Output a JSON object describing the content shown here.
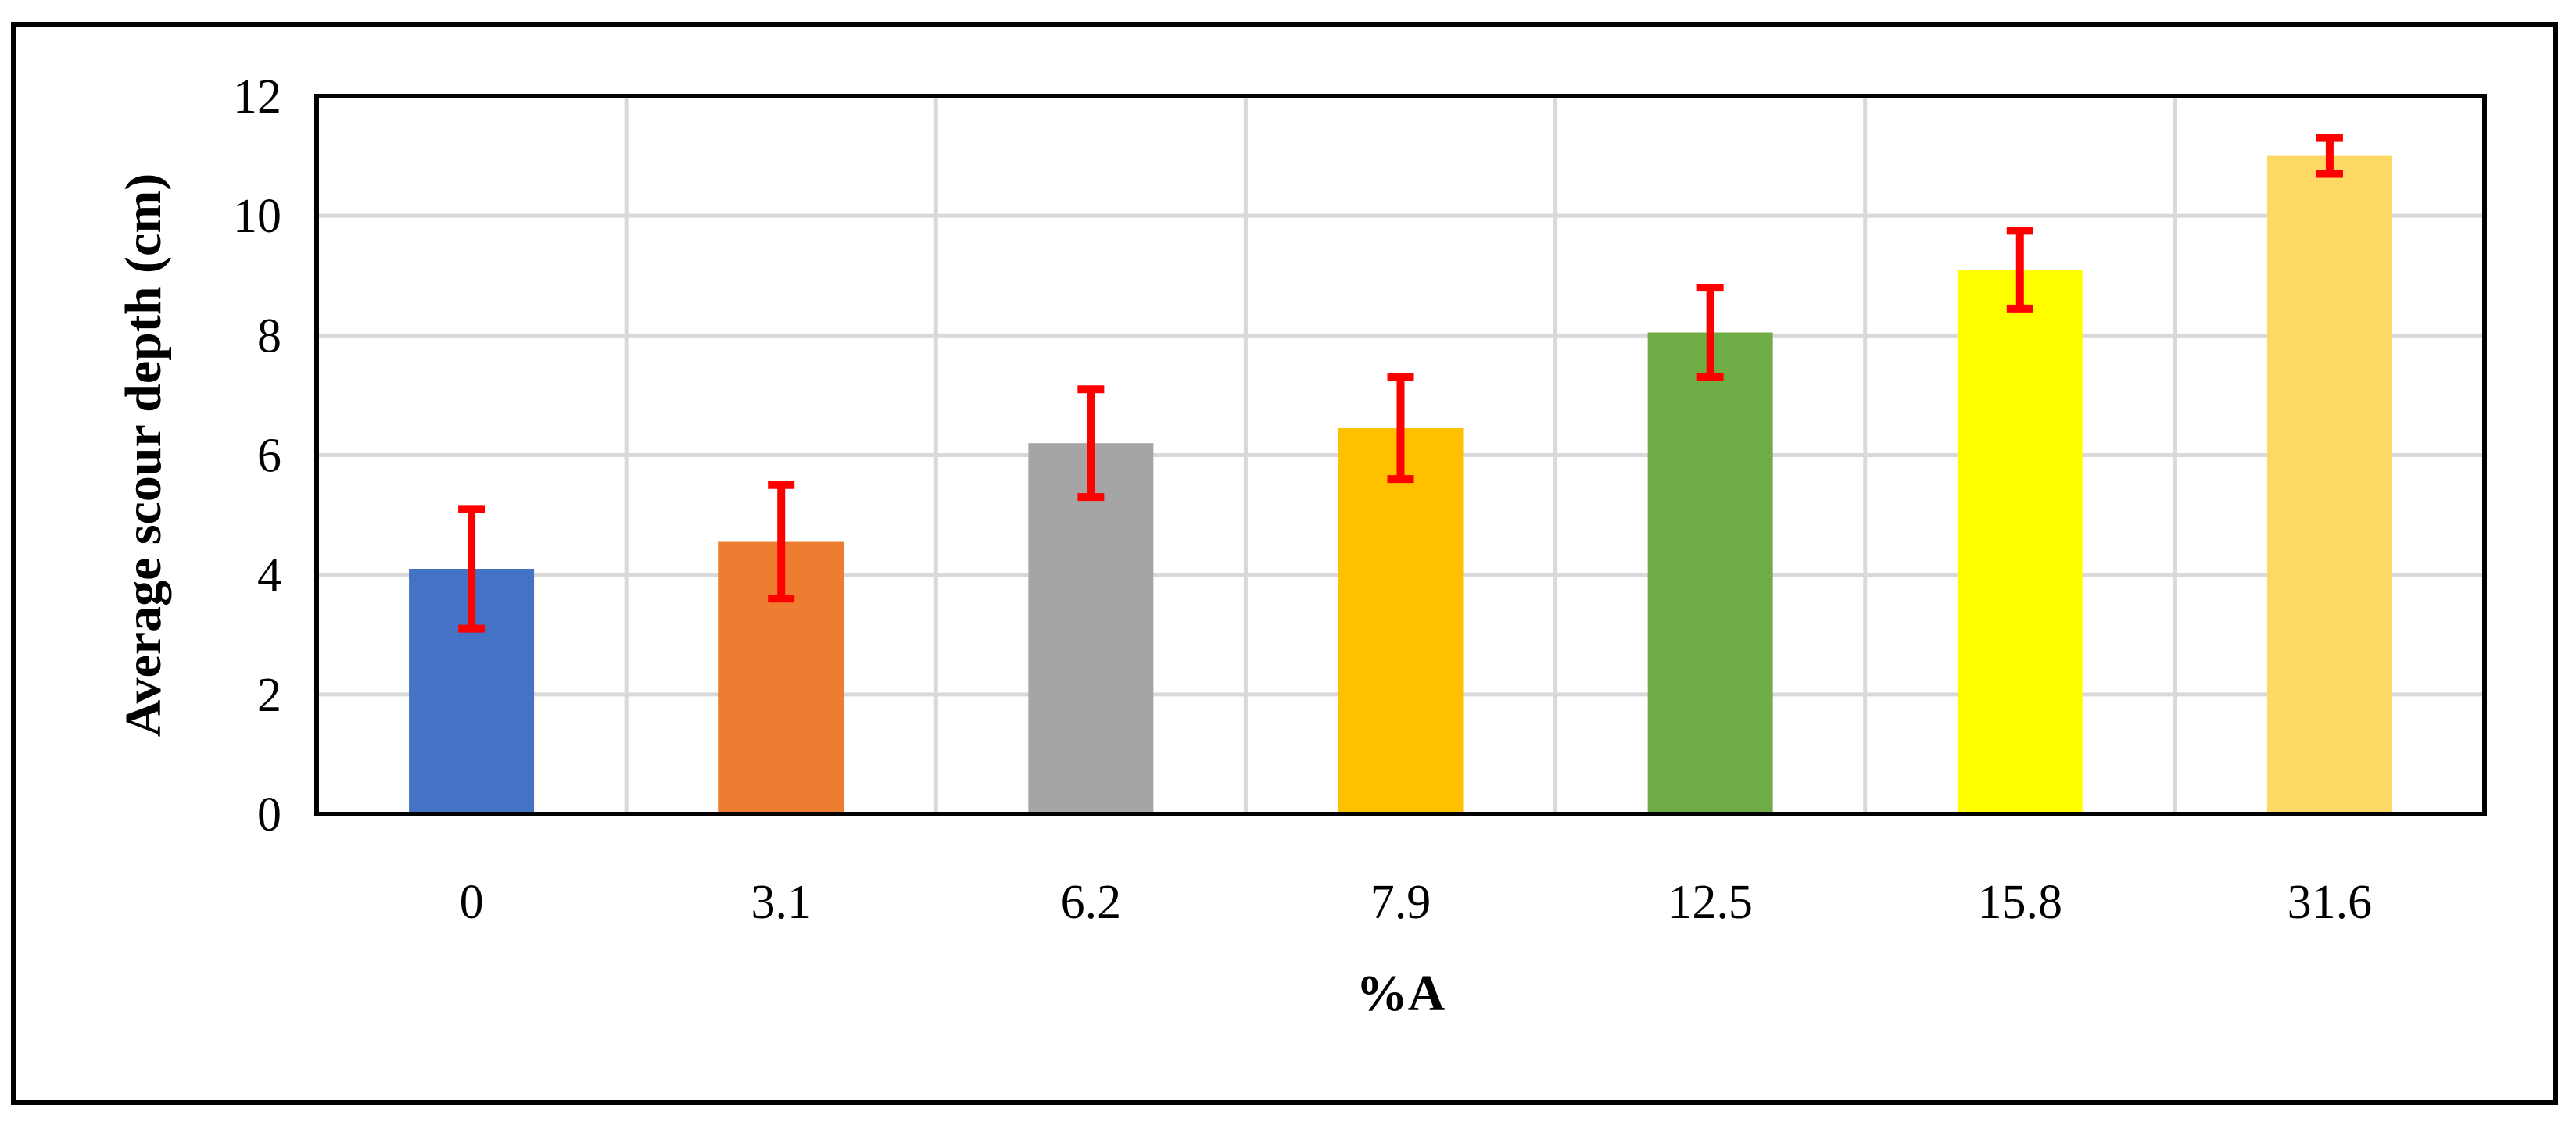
{
  "chart_data": {
    "type": "bar",
    "title": "",
    "xlabel": "%A",
    "ylabel": "Average scour depth (cm)",
    "ylim": [
      0,
      12
    ],
    "yticks": [
      0,
      2,
      4,
      6,
      8,
      10,
      12
    ],
    "grid": true,
    "legend": "none",
    "categories": [
      "0",
      "3.1",
      "6.2",
      "7.9",
      "12.5",
      "15.8",
      "31.6"
    ],
    "values": [
      4.1,
      4.55,
      6.2,
      6.45,
      8.05,
      9.1,
      11.0
    ],
    "error_bars": [
      1.0,
      0.95,
      0.9,
      0.85,
      0.75,
      0.65,
      0.3
    ],
    "bar_colors": [
      "#4472C4",
      "#ED7D31",
      "#A5A5A5",
      "#FFC000",
      "#70AD47",
      "#FFFF00",
      "#FFD966"
    ],
    "error_bar_color": "#FF0000",
    "grid_color": "#D9D9D9"
  }
}
